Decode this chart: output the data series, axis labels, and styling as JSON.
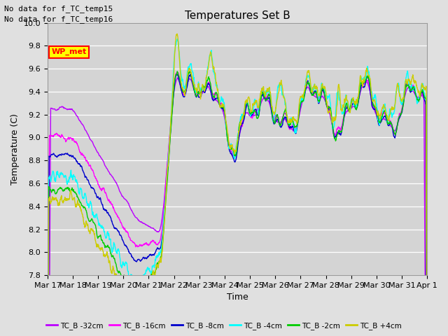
{
  "title": "Temperatures Set B",
  "xlabel": "Time",
  "ylabel": "Temperature (C)",
  "ylim": [
    7.8,
    10.0
  ],
  "yticks": [
    7.8,
    8.0,
    8.2,
    8.4,
    8.6,
    8.8,
    9.0,
    9.2,
    9.4,
    9.6,
    9.8,
    10.0
  ],
  "xtick_labels": [
    "Mar 17",
    "Mar 18",
    "Mar 19",
    "Mar 20",
    "Mar 21",
    "Mar 22",
    "Mar 23",
    "Mar 24",
    "Mar 25",
    "Mar 26",
    "Mar 27",
    "Mar 28",
    "Mar 29",
    "Mar 30",
    "Mar 31",
    "Apr 1"
  ],
  "series_labels": [
    "TC_B -32cm",
    "TC_B -16cm",
    "TC_B -8cm",
    "TC_B -4cm",
    "TC_B -2cm",
    "TC_B +4cm"
  ],
  "series_colors": [
    "#bb00ff",
    "#ff00ff",
    "#0000cc",
    "#00ffff",
    "#00cc00",
    "#cccc00"
  ],
  "legend_text_above": [
    "No data for f_TC_temp15",
    "No data for f_TC_temp16"
  ],
  "wp_met_label": "WP_met",
  "background_color": "#e0e0e0",
  "plot_bg_color": "#d4d4d4",
  "grid_color": "#ffffff",
  "linewidth": 1.0,
  "n_points": 1440
}
